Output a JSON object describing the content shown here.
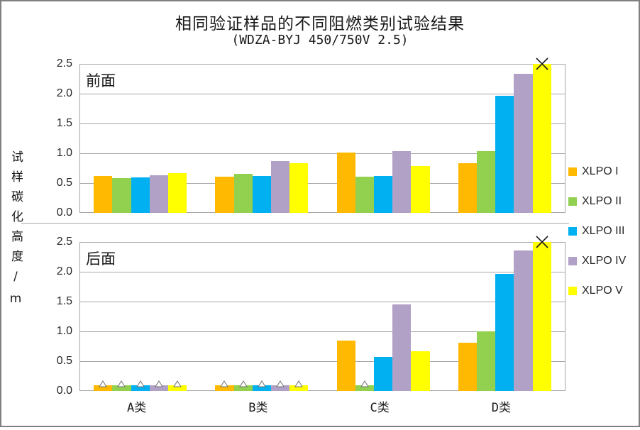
{
  "title": "相同验证样品的不同阻燃类别试验结果",
  "subtitle": "(WDZA-BYJ 450/750V 2.5)",
  "y_axis_title": "试样碳化高度/m",
  "colors": {
    "xlpo_1": "#FFB900",
    "xlpo_2": "#92D050",
    "xlpo_3": "#00B0F0",
    "xlpo_4": "#B2A1C7",
    "xlpo_5": "#FFFF00",
    "gridline": "#a6a6a6",
    "marker_x": "#1a1a1a",
    "marker_triangle_stroke": "#737373"
  },
  "legend": [
    {
      "label": "XLPO I",
      "color": "#FFB900"
    },
    {
      "label": "XLPO II",
      "color": "#92D050"
    },
    {
      "label": "XLPO III",
      "color": "#00B0F0"
    },
    {
      "label": "XLPO IV",
      "color": "#B2A1C7"
    },
    {
      "label": "XLPO V",
      "color": "#FFFF00"
    }
  ],
  "axis": {
    "ymin": 0,
    "ymax": 2.5,
    "step": 0.5,
    "tick_labels": [
      "0.0",
      "0.5",
      "1.0",
      "1.5",
      "2.0",
      "2.5"
    ]
  },
  "categories": [
    "A类",
    "B类",
    "C类",
    "D类"
  ],
  "chart_data": [
    {
      "type": "bar",
      "panel_label": "前面",
      "title": "相同验证样品的不同阻燃类别试验结果",
      "subtitle": "(WDZA-BYJ 450/750V 2.5)",
      "ylabel": "试样碳化高度/m",
      "ylim": [
        0,
        2.5
      ],
      "grid": true,
      "legend_position": "right",
      "categories": [
        "A类",
        "B类",
        "C类",
        "D类"
      ],
      "series": [
        {
          "name": "XLPO I",
          "color": "#FFB900",
          "values": [
            0.62,
            0.61,
            1.01,
            0.83
          ],
          "marker_flags": [
            null,
            null,
            null,
            null
          ]
        },
        {
          "name": "XLPO II",
          "color": "#92D050",
          "values": [
            0.58,
            0.65,
            0.61,
            1.04
          ],
          "marker_flags": [
            null,
            null,
            null,
            null
          ]
        },
        {
          "name": "XLPO III",
          "color": "#00B0F0",
          "values": [
            0.6,
            0.62,
            0.62,
            1.97
          ],
          "marker_flags": [
            null,
            null,
            null,
            null
          ]
        },
        {
          "name": "XLPO IV",
          "color": "#B2A1C7",
          "values": [
            0.63,
            0.87,
            1.04,
            2.33
          ],
          "marker_flags": [
            null,
            null,
            null,
            null
          ]
        },
        {
          "name": "XLPO V",
          "color": "#FFFF00",
          "values": [
            0.67,
            0.83,
            0.79,
            2.5
          ],
          "marker_flags": [
            null,
            null,
            null,
            "x"
          ]
        }
      ]
    },
    {
      "type": "bar",
      "panel_label": "后面",
      "ylabel": "试样碳化高度/m",
      "ylim": [
        0,
        2.5
      ],
      "grid": true,
      "categories": [
        "A类",
        "B类",
        "C类",
        "D类"
      ],
      "series": [
        {
          "name": "XLPO I",
          "color": "#FFB900",
          "values": [
            0.1,
            0.1,
            0.85,
            0.81
          ],
          "marker_flags": [
            "tri",
            "tri",
            null,
            null
          ]
        },
        {
          "name": "XLPO II",
          "color": "#92D050",
          "values": [
            0.1,
            0.1,
            0.1,
            1.0
          ],
          "marker_flags": [
            "tri",
            "tri",
            "tri",
            null
          ]
        },
        {
          "name": "XLPO III",
          "color": "#00B0F0",
          "values": [
            0.1,
            0.1,
            0.57,
            1.97
          ],
          "marker_flags": [
            "tri",
            "tri",
            null,
            null
          ]
        },
        {
          "name": "XLPO IV",
          "color": "#B2A1C7",
          "values": [
            0.1,
            0.1,
            1.45,
            2.36
          ],
          "marker_flags": [
            "tri",
            "tri",
            null,
            null
          ]
        },
        {
          "name": "XLPO V",
          "color": "#FFFF00",
          "values": [
            0.1,
            0.1,
            0.67,
            2.5
          ],
          "marker_flags": [
            "tri",
            "tri",
            null,
            "x"
          ]
        }
      ]
    }
  ]
}
